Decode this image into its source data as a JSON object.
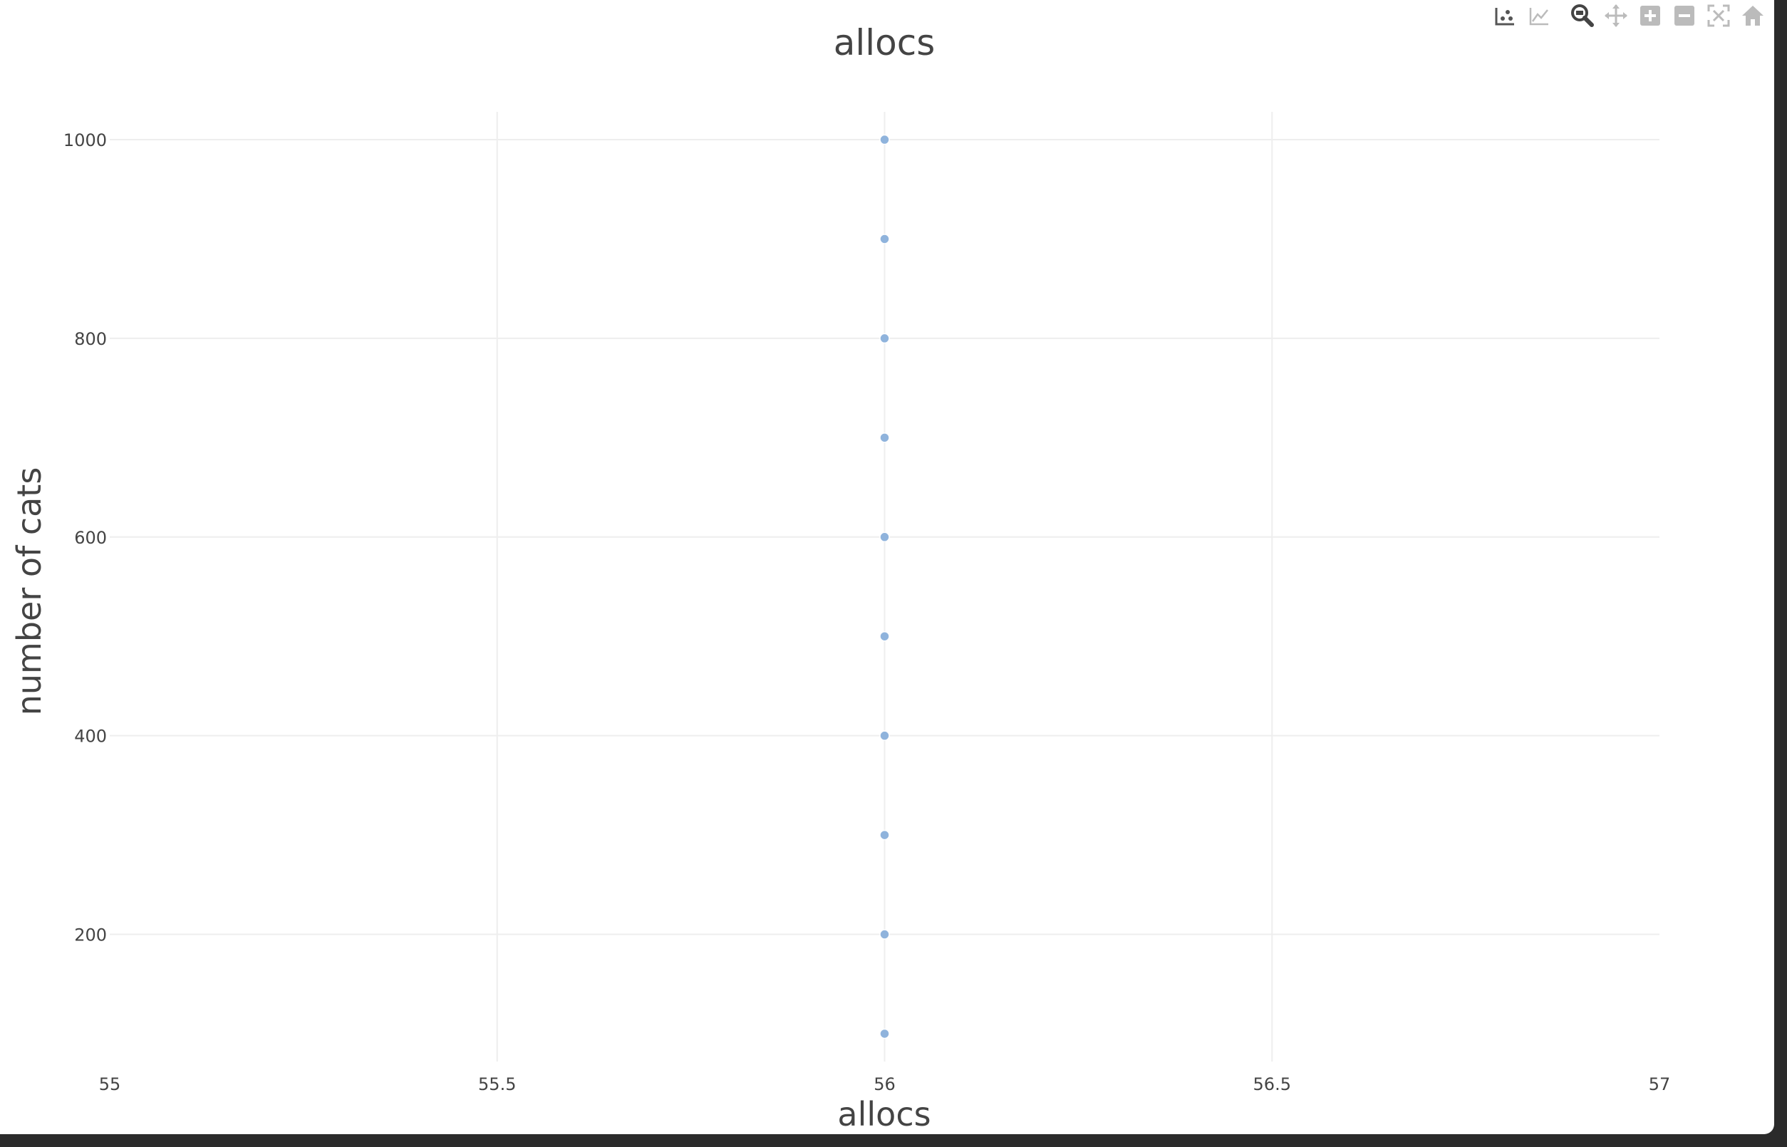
{
  "modebar": {
    "buttons": [
      {
        "id": "compare-data-on-hover",
        "icon": "scatter-hover-icon"
      },
      {
        "id": "show-closest-data-on-hover",
        "icon": "line-hover-icon"
      },
      {
        "id": "zoom",
        "icon": "magnifier-icon"
      },
      {
        "id": "pan",
        "icon": "pan-arrows-icon"
      },
      {
        "id": "zoom-in",
        "icon": "plus-box-icon"
      },
      {
        "id": "zoom-out",
        "icon": "minus-box-icon"
      },
      {
        "id": "autoscale",
        "icon": "autoscale-icon"
      },
      {
        "id": "reset-axes",
        "icon": "home-icon"
      }
    ]
  },
  "colors": {
    "marker": "#8fb3dc",
    "marker_line": "#ffffff",
    "grid": "#eeeeee",
    "text": "#444444"
  },
  "chart_data": {
    "type": "scatter",
    "title": "allocs",
    "xlabel": "allocs",
    "ylabel": "number of cats",
    "xlim": [
      55,
      57
    ],
    "ylim": [
      72,
      1028
    ],
    "x_ticks": [
      "55",
      "55.5",
      "56",
      "56.5",
      "57"
    ],
    "x_tick_values": [
      55,
      55.5,
      56,
      56.5,
      57
    ],
    "y_ticks": [
      "200",
      "400",
      "600",
      "800",
      "1000"
    ],
    "y_tick_values": [
      200,
      400,
      600,
      800,
      1000
    ],
    "grid": true,
    "legend": "none",
    "series": [
      {
        "x": [
          56,
          56,
          56,
          56,
          56,
          56,
          56,
          56,
          56,
          56
        ],
        "y": [
          100,
          200,
          300,
          400,
          500,
          600,
          700,
          800,
          900,
          1000
        ]
      }
    ]
  }
}
